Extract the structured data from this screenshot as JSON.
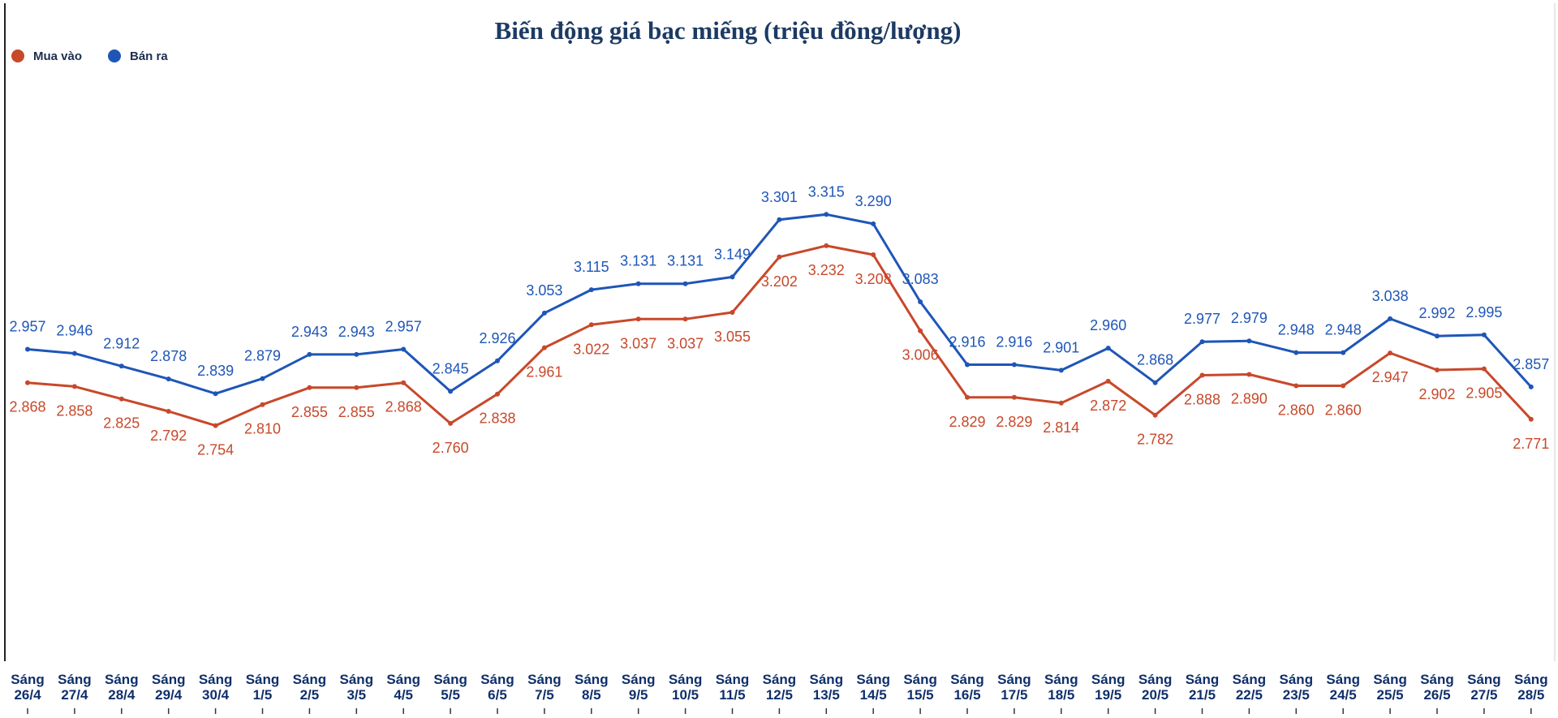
{
  "chart_data": {
    "type": "line",
    "title": "Biến động giá bạc miếng (triệu đồng/lượng)",
    "xlabel": "",
    "ylabel": "",
    "categories": [
      [
        "Sáng",
        "26/4"
      ],
      [
        "Sáng",
        "27/4"
      ],
      [
        "Sáng",
        "28/4"
      ],
      [
        "Sáng",
        "29/4"
      ],
      [
        "Sáng",
        "30/4"
      ],
      [
        "Sáng",
        "1/5"
      ],
      [
        "Sáng",
        "2/5"
      ],
      [
        "Sáng",
        "3/5"
      ],
      [
        "Sáng",
        "4/5"
      ],
      [
        "Sáng",
        "5/5"
      ],
      [
        "Sáng",
        "6/5"
      ],
      [
        "Sáng",
        "7/5"
      ],
      [
        "Sáng",
        "8/5"
      ],
      [
        "Sáng",
        "9/5"
      ],
      [
        "Sáng",
        "10/5"
      ],
      [
        "Sáng",
        "11/5"
      ],
      [
        "Sáng",
        "12/5"
      ],
      [
        "Sáng",
        "13/5"
      ],
      [
        "Sáng",
        "14/5"
      ],
      [
        "Sáng",
        "15/5"
      ],
      [
        "Sáng",
        "16/5"
      ],
      [
        "Sáng",
        "17/5"
      ],
      [
        "Sáng",
        "18/5"
      ],
      [
        "Sáng",
        "19/5"
      ],
      [
        "Sáng",
        "20/5"
      ],
      [
        "Sáng",
        "21/5"
      ],
      [
        "Sáng",
        "22/5"
      ],
      [
        "Sáng",
        "23/5"
      ],
      [
        "Sáng",
        "24/5"
      ],
      [
        "Sáng",
        "25/5"
      ],
      [
        "Sáng",
        "26/5"
      ],
      [
        "Sáng",
        "27/5"
      ],
      [
        "Sáng",
        "28/5"
      ]
    ],
    "series": [
      {
        "name": "Mua vào",
        "color": "#c8482a",
        "values": [
          2.868,
          2.858,
          2.825,
          2.792,
          2.754,
          2.81,
          2.855,
          2.855,
          2.868,
          2.76,
          2.838,
          2.961,
          3.022,
          3.037,
          3.037,
          3.055,
          3.202,
          3.232,
          3.208,
          3.006,
          2.829,
          2.829,
          2.814,
          2.872,
          2.782,
          2.888,
          2.89,
          2.86,
          2.86,
          2.947,
          2.902,
          2.905,
          2.771
        ],
        "labels": [
          "2.868",
          "2.858",
          "2.825",
          "2.792",
          "2.754",
          "2.810",
          "2.855",
          "2.855",
          "2.868",
          "2.760",
          "2.838",
          "2.961",
          "3.022",
          "3.037",
          "3.037",
          "3.055",
          "3.202",
          "3.232",
          "3.208",
          "3.006",
          "2.829",
          "2.829",
          "2.814",
          "2.872",
          "2.782",
          "2.888",
          "2.890",
          "2.860",
          "2.860",
          "2.947",
          "2.902",
          "2.905",
          "2.771"
        ]
      },
      {
        "name": "Bán ra",
        "color": "#1e56b8",
        "values": [
          2.957,
          2.946,
          2.912,
          2.878,
          2.839,
          2.879,
          2.943,
          2.943,
          2.957,
          2.845,
          2.926,
          3.053,
          3.115,
          3.131,
          3.131,
          3.149,
          3.301,
          3.315,
          3.29,
          3.083,
          2.916,
          2.916,
          2.901,
          2.96,
          2.868,
          2.977,
          2.979,
          2.948,
          2.948,
          3.038,
          2.992,
          2.995,
          2.857
        ],
        "labels": [
          "2.957",
          "2.946",
          "2.912",
          "2.878",
          "2.839",
          "2.879",
          "2.943",
          "2.943",
          "2.957",
          "2.845",
          "2.926",
          "3.053",
          "3.115",
          "3.131",
          "3.131",
          "3.149",
          "3.301",
          "3.315",
          "3.290",
          "3.083",
          "2.916",
          "2.916",
          "2.901",
          "2.960",
          "2.868",
          "2.977",
          "2.979",
          "2.948",
          "2.948",
          "3.038",
          "2.992",
          "2.995",
          "2.857"
        ]
      }
    ],
    "legend_position": "top-left",
    "grid": false
  },
  "colors": {
    "title": "#1c3a63",
    "tick": "#0f2f6b",
    "mua_vao": "#c8482a",
    "ban_ra": "#1e56b8"
  }
}
